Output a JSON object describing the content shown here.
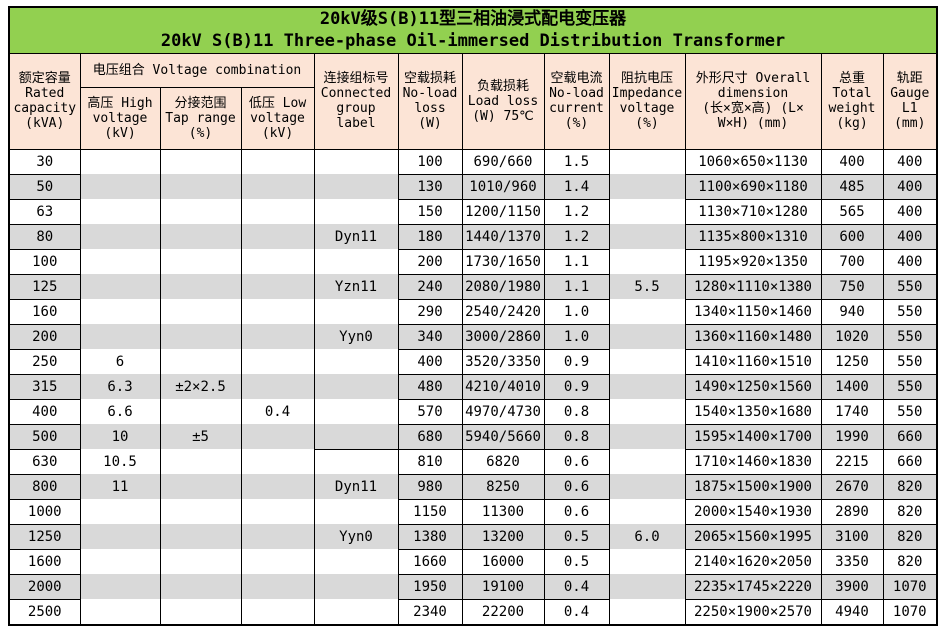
{
  "colors": {
    "title_bg": "#92d050",
    "header_bg": "#fce4d6",
    "stripe_bg": "#d9d9d9",
    "grid": "#000000",
    "text": "#000000"
  },
  "title": {
    "zh": "20kV级S(B)11型三相油浸式配电变压器",
    "en": "20kV S(B)11 Three-phase Oil-immersed Distribution Transformer"
  },
  "header": {
    "capacity": "额定容量\nRated\ncapacity\n(kVA)",
    "voltage_combination": "电压组合 Voltage combination",
    "hv": "高压 High\nvoltage\n(kV)",
    "tap": "分接范围\nTap range\n(%)",
    "lv": "低压 Low\nvoltage\n(kV)",
    "group": "连接组标号\nConnected\ngroup\nlabel",
    "no_load_loss": "空载损耗\nNo-load\nloss\n(W)",
    "load_loss": "负载损耗\nLoad loss\n(W) 75℃",
    "no_load_current": "空载电流\nNo-load\ncurrent\n(%)",
    "impedance": "阻抗电压\nImpedance\nvoltage\n(%)",
    "dimensions": "外形尺寸 Overall\ndimension\n(长×宽×高) (L×\nW×H) (mm)",
    "weight": "总重\nTotal\nweight\n(kg)",
    "gauge": "轨距\nGauge\nL1\n(mm)"
  },
  "table": {
    "rows": [
      {
        "capacity": "30",
        "hv": "",
        "tap": "",
        "lv": "",
        "group": "",
        "no_load_loss": "100",
        "load_loss": "690/660",
        "no_load_current": "1.5",
        "impedance": "",
        "dimensions": "1060×650×1130",
        "weight": "400",
        "gauge": "400"
      },
      {
        "capacity": "50",
        "hv": "",
        "tap": "",
        "lv": "",
        "group": "",
        "no_load_loss": "130",
        "load_loss": "1010/960",
        "no_load_current": "1.4",
        "impedance": "",
        "dimensions": "1100×690×1180",
        "weight": "485",
        "gauge": "400"
      },
      {
        "capacity": "63",
        "hv": "",
        "tap": "",
        "lv": "",
        "group": "",
        "no_load_loss": "150",
        "load_loss": "1200/1150",
        "no_load_current": "1.2",
        "impedance": "",
        "dimensions": "1130×710×1280",
        "weight": "565",
        "gauge": "400"
      },
      {
        "capacity": "80",
        "hv": "",
        "tap": "",
        "lv": "",
        "group": "Dyn11",
        "no_load_loss": "180",
        "load_loss": "1440/1370",
        "no_load_current": "1.2",
        "impedance": "",
        "dimensions": "1135×800×1310",
        "weight": "600",
        "gauge": "400"
      },
      {
        "capacity": "100",
        "hv": "",
        "tap": "",
        "lv": "",
        "group": "",
        "no_load_loss": "200",
        "load_loss": "1730/1650",
        "no_load_current": "1.1",
        "impedance": "",
        "dimensions": "1195×920×1350",
        "weight": "700",
        "gauge": "400"
      },
      {
        "capacity": "125",
        "hv": "",
        "tap": "",
        "lv": "",
        "group": "Yzn11",
        "no_load_loss": "240",
        "load_loss": "2080/1980",
        "no_load_current": "1.1",
        "impedance": "5.5",
        "dimensions": "1280×1110×1380",
        "weight": "750",
        "gauge": "550"
      },
      {
        "capacity": "160",
        "hv": "",
        "tap": "",
        "lv": "",
        "group": "",
        "no_load_loss": "290",
        "load_loss": "2540/2420",
        "no_load_current": "1.0",
        "impedance": "",
        "dimensions": "1340×1150×1460",
        "weight": "940",
        "gauge": "550"
      },
      {
        "capacity": "200",
        "hv": "",
        "tap": "",
        "lv": "",
        "group": "Yyn0",
        "no_load_loss": "340",
        "load_loss": "3000/2860",
        "no_load_current": "1.0",
        "impedance": "",
        "dimensions": "1360×1160×1480",
        "weight": "1020",
        "gauge": "550"
      },
      {
        "capacity": "250",
        "hv": "6",
        "tap": "",
        "lv": "",
        "group": "",
        "no_load_loss": "400",
        "load_loss": "3520/3350",
        "no_load_current": "0.9",
        "impedance": "",
        "dimensions": "1410×1160×1510",
        "weight": "1250",
        "gauge": "550"
      },
      {
        "capacity": "315",
        "hv": "6.3",
        "tap": "±2×2.5",
        "lv": "",
        "group": "",
        "no_load_loss": "480",
        "load_loss": "4210/4010",
        "no_load_current": "0.9",
        "impedance": "",
        "dimensions": "1490×1250×1560",
        "weight": "1400",
        "gauge": "550"
      },
      {
        "capacity": "400",
        "hv": "6.6",
        "tap": "",
        "lv": "0.4",
        "group": "",
        "no_load_loss": "570",
        "load_loss": "4970/4730",
        "no_load_current": "0.8",
        "impedance": "",
        "dimensions": "1540×1350×1680",
        "weight": "1740",
        "gauge": "550"
      },
      {
        "capacity": "500",
        "hv": "10",
        "tap": "±5",
        "lv": "",
        "group": "",
        "no_load_loss": "680",
        "load_loss": "5940/5660",
        "no_load_current": "0.8",
        "impedance": "",
        "dimensions": "1595×1400×1700",
        "weight": "1990",
        "gauge": "660"
      },
      {
        "capacity": "630",
        "hv": "10.5",
        "tap": "",
        "lv": "",
        "group": "",
        "group_divider_above": true,
        "no_load_loss": "810",
        "load_loss": "6820",
        "no_load_current": "0.6",
        "impedance": "",
        "dimensions": "1710×1460×1830",
        "weight": "2215",
        "gauge": "660"
      },
      {
        "capacity": "800",
        "hv": "11",
        "tap": "",
        "lv": "",
        "group": "Dyn11",
        "no_load_loss": "980",
        "load_loss": "8250",
        "no_load_current": "0.6",
        "impedance": "",
        "dimensions": "1875×1500×1900",
        "weight": "2670",
        "gauge": "820"
      },
      {
        "capacity": "1000",
        "hv": "",
        "tap": "",
        "lv": "",
        "group": "",
        "no_load_loss": "1150",
        "load_loss": "11300",
        "no_load_current": "0.6",
        "impedance": "",
        "dimensions": "2000×1540×1930",
        "weight": "2890",
        "gauge": "820"
      },
      {
        "capacity": "1250",
        "hv": "",
        "tap": "",
        "lv": "",
        "group": "Yyn0",
        "no_load_loss": "1380",
        "load_loss": "13200",
        "no_load_current": "0.5",
        "impedance": "6.0",
        "dimensions": "2065×1560×1995",
        "weight": "3100",
        "gauge": "820"
      },
      {
        "capacity": "1600",
        "hv": "",
        "tap": "",
        "lv": "",
        "group": "",
        "no_load_loss": "1660",
        "load_loss": "16000",
        "no_load_current": "0.5",
        "impedance": "",
        "dimensions": "2140×1620×2050",
        "weight": "3350",
        "gauge": "820"
      },
      {
        "capacity": "2000",
        "hv": "",
        "tap": "",
        "lv": "",
        "group": "",
        "no_load_loss": "1950",
        "load_loss": "19100",
        "no_load_current": "0.4",
        "impedance": "",
        "dimensions": "2235×1745×2220",
        "weight": "3900",
        "gauge": "1070"
      },
      {
        "capacity": "2500",
        "hv": "",
        "tap": "",
        "lv": "",
        "group": "",
        "no_load_loss": "2340",
        "load_loss": "22200",
        "no_load_current": "0.4",
        "impedance": "",
        "dimensions": "2250×1900×2570",
        "weight": "4940",
        "gauge": "1070"
      }
    ]
  }
}
